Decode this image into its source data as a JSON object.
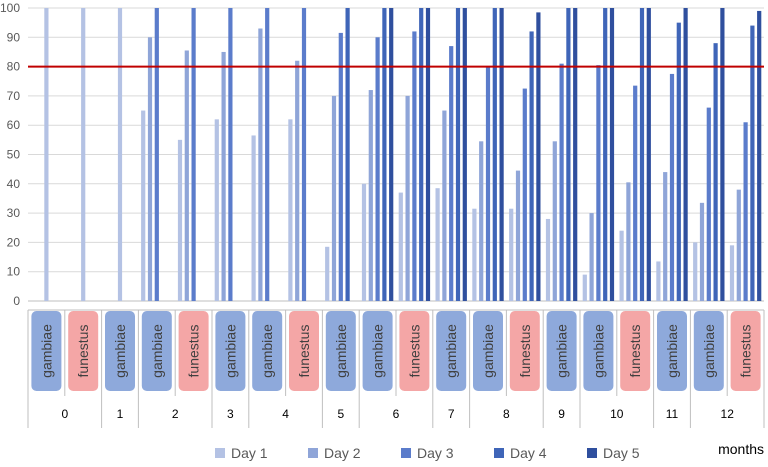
{
  "chart_data": {
    "type": "bar",
    "ylim": [
      0,
      100
    ],
    "yticks": [
      0,
      10,
      20,
      30,
      40,
      50,
      60,
      70,
      80,
      90,
      100
    ],
    "xlabel": "months",
    "reference_line": {
      "value": 80,
      "color": "#C00000"
    },
    "legend_position": "bottom",
    "groups": [
      {
        "month": "0",
        "species": [
          "gambiae",
          "funestus"
        ]
      },
      {
        "month": "1",
        "species": [
          "gambiae"
        ]
      },
      {
        "month": "2",
        "species": [
          "gambiae",
          "funestus"
        ]
      },
      {
        "month": "3",
        "species": [
          "gambiae"
        ]
      },
      {
        "month": "4",
        "species": [
          "gambiae",
          "funestus"
        ]
      },
      {
        "month": "5",
        "species": [
          "gambiae"
        ]
      },
      {
        "month": "6",
        "species": [
          "gambiae",
          "funestus"
        ]
      },
      {
        "month": "7",
        "species": [
          "gambiae"
        ]
      },
      {
        "month": "8",
        "species": [
          "gambiae",
          "funestus"
        ]
      },
      {
        "month": "9",
        "species": [
          "gambiae"
        ]
      },
      {
        "month": "10",
        "species": [
          "gambiae",
          "funestus"
        ]
      },
      {
        "month": "11",
        "species": [
          "gambiae"
        ]
      },
      {
        "month": "12",
        "species": [
          "gambiae",
          "funestus"
        ]
      }
    ],
    "species_colors": {
      "gambiae": "#8EA9DB",
      "funestus": "#F4A6A6"
    },
    "series": [
      {
        "name": "Day 1",
        "color": "#B4C2E4",
        "values": [
          100,
          100,
          100,
          65,
          55,
          62,
          56.5,
          62,
          18.5,
          40,
          37,
          38.5,
          31.5,
          31.5,
          28,
          9,
          24,
          13.5,
          20,
          19
        ]
      },
      {
        "name": "Day 2",
        "color": "#8FA5D8",
        "values": [
          null,
          null,
          null,
          90,
          85.5,
          85,
          93,
          82,
          70,
          72,
          70,
          65,
          54.5,
          44.5,
          54.5,
          30,
          40.5,
          44,
          33.5,
          38
        ]
      },
      {
        "name": "Day 3",
        "color": "#5B7CCB",
        "values": [
          null,
          null,
          null,
          100,
          100,
          100,
          100,
          100,
          91.5,
          90,
          92,
          87,
          80,
          72.5,
          81,
          80.5,
          73.5,
          77.5,
          66,
          61
        ]
      },
      {
        "name": "Day 4",
        "color": "#3F65B8",
        "values": [
          null,
          null,
          null,
          null,
          null,
          null,
          null,
          null,
          100,
          100,
          100,
          100,
          100,
          92,
          100,
          100,
          100,
          95,
          88,
          94
        ]
      },
      {
        "name": "Day 5",
        "color": "#2F4F9E",
        "values": [
          null,
          null,
          null,
          null,
          null,
          null,
          null,
          null,
          null,
          100,
          100,
          100,
          100,
          98.5,
          100,
          100,
          100,
          100,
          100,
          99
        ]
      }
    ]
  }
}
